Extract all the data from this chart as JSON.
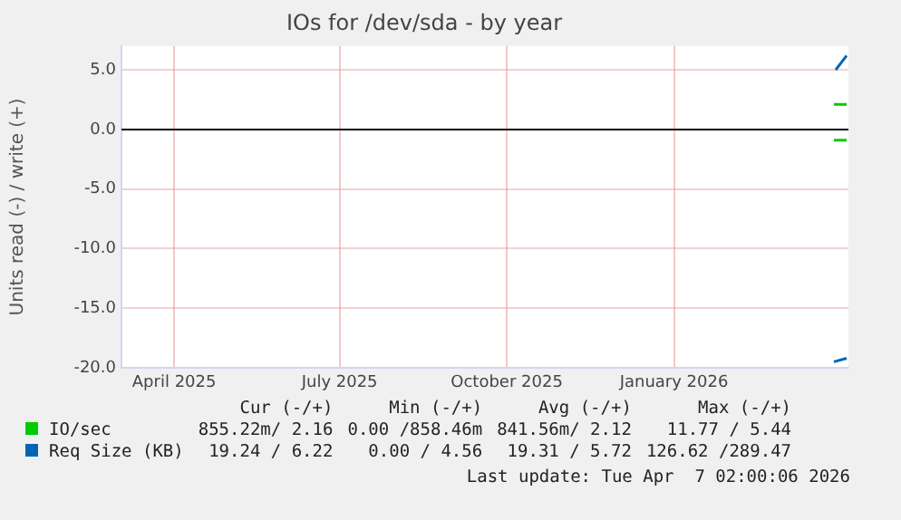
{
  "chart_data": {
    "type": "line",
    "title": "IOs for /dev/sda - by year",
    "ylabel": "Units read (-) / write (+)",
    "xlim": [
      "2025-03-03",
      "2026-04-07"
    ],
    "xticks": [
      {
        "value": "2025-04-01",
        "label": "April 2025"
      },
      {
        "value": "2025-07-01",
        "label": "July 2025"
      },
      {
        "value": "2025-10-01",
        "label": "October 2025"
      },
      {
        "value": "2026-01-01",
        "label": "January 2026"
      }
    ],
    "ylim": [
      -20,
      7
    ],
    "yticks": [
      {
        "value": -20,
        "label": "-20.0"
      },
      {
        "value": -15,
        "label": "-15.0"
      },
      {
        "value": -10,
        "label": "-10.0"
      },
      {
        "value": -5,
        "label": "-5.0"
      },
      {
        "value": 0,
        "label": "0.0"
      },
      {
        "value": 5,
        "label": "5.0"
      }
    ],
    "grid": true,
    "legend": "bottom",
    "marker": "none",
    "line_style": "solid",
    "ref_lines": [
      {
        "axis": "y",
        "value": 0,
        "color": "#000000"
      }
    ],
    "series": [
      {
        "name": "IO/sec",
        "color": "#00cc00",
        "x": [
          "2026-03-30",
          "2026-04-06"
        ],
        "values": [
          2.1,
          2.1
        ]
      },
      {
        "color": "#00cc00",
        "x": [
          "2026-03-30",
          "2026-04-06"
        ],
        "values": [
          -0.9,
          -0.9
        ]
      },
      {
        "name": "Req Size (KB)",
        "color": "#0066b3",
        "x": [
          "2026-03-31",
          "2026-04-06"
        ],
        "values": [
          5.0,
          6.2
        ]
      },
      {
        "color": "#0066b3",
        "x": [
          "2026-03-30",
          "2026-04-06"
        ],
        "values": [
          -19.5,
          -19.2
        ]
      }
    ],
    "annotations": [
      "Cur (-/+)",
      "Min (-/+)",
      "Avg (-/+)",
      "Max (-/+)",
      "855.22m/ 2.16",
      "0.00 /858.46m",
      "841.56m/ 2.12",
      "11.77 / 5.44",
      "19.24 / 6.22",
      "0.00 / 4.56",
      "19.31 / 5.72",
      "126.62 /289.47",
      "Last update: Tue Apr  7 02:00:06 2026"
    ]
  }
}
